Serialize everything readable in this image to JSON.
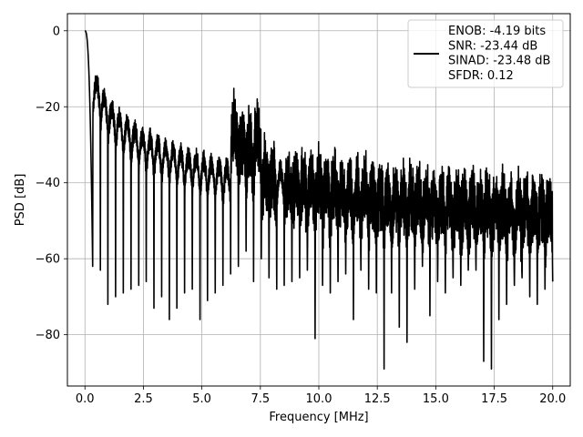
{
  "chart_data": {
    "type": "line",
    "title": "",
    "xlabel": "Frequency [MHz]",
    "ylabel": "PSD [dB]",
    "xlim": [
      -0.75,
      20.75
    ],
    "ylim": [
      -93.5,
      4.5
    ],
    "xticks": [
      0.0,
      2.5,
      5.0,
      7.5,
      10.0,
      12.5,
      15.0,
      17.5,
      20.0
    ],
    "xtick_labels": [
      "0.0",
      "2.5",
      "5.0",
      "7.5",
      "10.0",
      "12.5",
      "15.0",
      "17.5",
      "20.0"
    ],
    "yticks": [
      0,
      -20,
      -40,
      -60,
      -80
    ],
    "ytick_labels": [
      "0",
      "−20",
      "−40",
      "−60",
      "−80"
    ],
    "grid": true,
    "legend_position": "top-right",
    "series": [
      {
        "name": "ENOB: -4.19 bits",
        "legend_lines": [
          "ENOB: -4.19 bits",
          "SNR: -23.44 dB",
          "SINAD: -23.48 dB",
          "SFDR: 0.12"
        ],
        "color": "#000000",
        "x_range": [
          0,
          20
        ],
        "lobe_nulls_MHz": [
          0.33,
          0.66,
          0.98,
          1.31,
          1.64,
          1.97,
          2.3,
          2.62,
          2.95,
          3.28,
          3.61,
          3.93,
          4.26,
          4.59,
          4.92,
          5.24,
          5.57,
          5.9,
          6.23,
          6.56,
          6.89,
          7.21,
          7.54,
          7.87,
          8.2,
          8.52,
          8.85,
          9.18,
          9.51,
          9.84,
          10.16,
          10.49,
          10.82,
          11.15,
          11.48,
          11.8,
          12.13,
          12.46,
          12.79,
          13.11,
          13.44,
          13.77,
          14.1,
          14.43,
          14.75,
          15.08,
          15.41,
          15.74,
          16.07,
          16.39,
          16.72,
          17.05,
          17.38,
          17.7,
          18.03,
          18.36,
          18.69,
          19.02,
          19.34,
          19.67,
          20.0
        ],
        "peaks_dB": [
          0,
          -13.5,
          -17.5,
          -20.6,
          -22.7,
          -24.5,
          -26.0,
          -27.5,
          -28.5,
          -29.5,
          -30.5,
          -31.3,
          -32.2,
          -33.0,
          -33.6,
          -34.2,
          -34.8,
          -35.3,
          -36.0,
          -22.5,
          -26.0,
          -27.5,
          -25.0,
          -34.5,
          -36.0,
          -36.5,
          -37.0,
          -37.2,
          -37.5,
          -37.8,
          -38.0,
          -38.2,
          -38.5,
          -38.8,
          -39.0,
          -39.2,
          -39.5,
          -39.8,
          -40.0,
          -40.2,
          -40.4,
          -40.6,
          -40.8,
          -41.0,
          -41.2,
          -41.4,
          -41.5,
          -41.7,
          -41.9,
          -42.0,
          -42.2,
          -42.4,
          -42.5,
          -42.6,
          -42.8,
          -42.9,
          -43.0,
          -43.1,
          -43.2,
          -43.3,
          -43.4
        ],
        "null_depths_dB": [
          -62,
          -63,
          -72,
          -70,
          -69,
          -68,
          -67,
          -66,
          -73,
          -70,
          -76,
          -73,
          -69,
          -68,
          -76,
          -71,
          -69,
          -67,
          -64,
          -62,
          -58,
          -66,
          -60,
          -65,
          -68,
          -67,
          -66,
          -65,
          -63,
          -81,
          -67,
          -69,
          -66,
          -64,
          -76,
          -63,
          -68,
          -69,
          -89,
          -69,
          -78,
          -82,
          -68,
          -62,
          -75,
          -66,
          -69,
          -65,
          -67,
          -63,
          -63,
          -87,
          -89,
          -76,
          -72,
          -67,
          -65,
          -70,
          -72,
          -68,
          -66
        ]
      }
    ]
  }
}
